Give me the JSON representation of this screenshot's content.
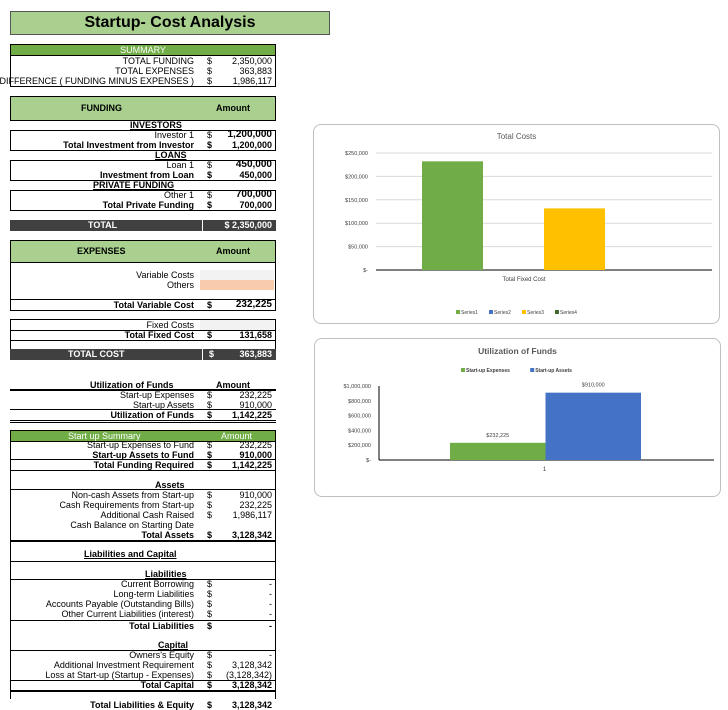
{
  "title": "Startup- Cost Analysis",
  "cur": "$",
  "summary": {
    "header": "SUMMARY",
    "rows": [
      {
        "label": "TOTAL FUNDING",
        "value": "2,350,000"
      },
      {
        "label": "TOTAL EXPENSES",
        "value": "363,883"
      },
      {
        "label": "DIFFERENCE  ( FUNDING MINUS EXPENSES )",
        "value": "1,986,117"
      }
    ]
  },
  "funding": {
    "header": "FUNDING",
    "amount": "Amount",
    "investors": "INVESTORS",
    "investor1": {
      "label": "Investor 1",
      "value": "1,200,000"
    },
    "total_investor": {
      "label": "Total Investment from Investor",
      "value": "1,200,000"
    },
    "loans": "LOANS",
    "loan1": {
      "label": "Loan 1",
      "value": "450,000"
    },
    "total_loan": {
      "label": "Investment from Loan",
      "value": "450,000"
    },
    "private": "PRIVATE FUNDING",
    "other1": {
      "label": "Other 1",
      "value": "700,000"
    },
    "total_private": {
      "label": "Total Private Funding",
      "value": "700,000"
    },
    "total": {
      "label": "TOTAL",
      "value": "$ 2,350,000"
    }
  },
  "expenses": {
    "header": "EXPENSES",
    "amount": "Amount",
    "variable": {
      "label": "Variable Costs",
      "value": "232,225"
    },
    "others": {
      "label": "Others",
      "value": "-"
    },
    "total_variable": {
      "label": "Total Variable Cost",
      "value": "232,225"
    },
    "fixed": {
      "label": "Fixed Costs",
      "value": "131,658"
    },
    "total_fixed": {
      "label": "Total Fixed Cost",
      "value": "131,658"
    },
    "total_cost": {
      "label": "TOTAL  COST",
      "value": "363,883"
    }
  },
  "utilization": {
    "header": "Utilization of Funds",
    "amount": "Amount",
    "rows": [
      {
        "label": "Start-up Expenses",
        "value": "232,225"
      },
      {
        "label": "Start-up Assets",
        "value": "910,000"
      }
    ],
    "total": {
      "label": "Utilization of Funds",
      "value": "1,142,225"
    }
  },
  "startup_summary": {
    "header": "Start up Summary",
    "amount": "Amount",
    "rows": [
      {
        "label": "Start-up Expenses to Fund",
        "value": "232,225"
      },
      {
        "label": "Start-up Assets to Fund",
        "value": "910,000"
      },
      {
        "label": "Total Funding Required",
        "value": "1,142,225"
      }
    ]
  },
  "assets": {
    "header": "Assets",
    "rows": [
      {
        "label": "Non-cash Assets from Start-up",
        "value": "910,000"
      },
      {
        "label": "Cash Requirements from Start-up",
        "value": "232,225"
      },
      {
        "label": "Additional Cash Raised",
        "value": "1,986,117"
      },
      {
        "label": "Cash Balance on Starting Date",
        "value": ""
      }
    ],
    "total": {
      "label": "Total Assets",
      "value": "3,128,342"
    }
  },
  "liab_cap": "Liabilities and Capital",
  "liabilities": {
    "header": "Liabilities",
    "rows": [
      {
        "label": "Current Borrowing",
        "value": "-"
      },
      {
        "label": "Long-term Liabilities",
        "value": "-"
      },
      {
        "label": "Accounts Payable (Outstanding Bills)",
        "value": "-"
      },
      {
        "label": "Other Current Liabilities (interest)",
        "value": "-"
      }
    ],
    "total": {
      "label": "Total Liabilities",
      "value": "-"
    }
  },
  "capital": {
    "header": "Capital",
    "rows": [
      {
        "label": "Owners's Equity",
        "value": "-"
      },
      {
        "label": "Additional Investment Requirement",
        "value": "3,128,342"
      },
      {
        "label": "Loss at Start-up (Startup - Expenses)",
        "value": "(3,128,342)"
      }
    ],
    "total": {
      "label": "Total Capital",
      "value": "3,128,342"
    }
  },
  "total_le": {
    "label": "Total Liabilities & Equity",
    "value": "3,128,342"
  },
  "chart_data": [
    {
      "type": "bar",
      "title": "Total Costs",
      "categories": [
        "Total Fixed Cost"
      ],
      "ylim": [
        0,
        250000
      ],
      "yticks": [
        "$-",
        "$50,000",
        "$100,000",
        "$150,000",
        "$200,000",
        "$250,000"
      ],
      "grid": true,
      "legend": "bottom",
      "series": [
        {
          "name": "Series1",
          "values": [
            232225
          ],
          "color": "#70ad47"
        },
        {
          "name": "Series2",
          "values": [
            0
          ],
          "color": "#4472c4"
        },
        {
          "name": "Series3",
          "values": [
            131658
          ],
          "color": "#ffc000"
        },
        {
          "name": "Series4",
          "values": [
            0
          ],
          "color": "#43682b"
        }
      ]
    },
    {
      "type": "bar",
      "title": "Utilization of Funds",
      "categories": [
        "1"
      ],
      "ylim": [
        0,
        1000000
      ],
      "yticks": [
        "$-",
        "$200,000",
        "$400,000",
        "$600,000",
        "$800,000",
        "$1,000,000"
      ],
      "grid": false,
      "legend": "top",
      "series": [
        {
          "name": "Start-up Expenses",
          "values": [
            232225
          ],
          "color": "#70ad47",
          "label": "$232,225"
        },
        {
          "name": "Start-up Assets",
          "values": [
            910000
          ],
          "color": "#4472c4",
          "label": "$910,000"
        }
      ]
    }
  ]
}
